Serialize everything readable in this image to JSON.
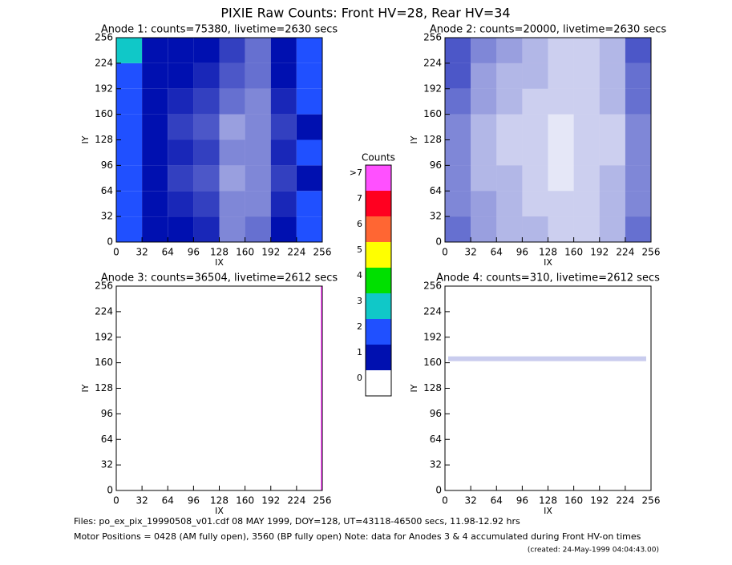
{
  "title": "PIXIE Raw Counts:  Front HV=28, Rear HV=34",
  "footer": [
    "Files: po_ex_pix_19990508_v01.cdf    08 MAY 1999, DOY=128, UT=43118-46500 secs, 11.98-12.92 hrs",
    "Motor Positions = 0428 (AM fully open), 3560 (BP fully open)    Note: data for Anodes 3 & 4 accumulated during Front HV-on times",
    "(created: 24-May-1999 04:04:43.00)"
  ],
  "colorbar": {
    "title": "Counts",
    "ticks": [
      0,
      1,
      2,
      3,
      4,
      5,
      6,
      7,
      {
        "value": 8,
        "label": ">7"
      }
    ],
    "colors": [
      "#ffffff",
      "#0010b0",
      "#2050ff",
      "#10c8c8",
      "#00e000",
      "#ffff00",
      "#ff6633",
      "#ff0020",
      "#ff50ff"
    ]
  },
  "chart_data": [
    {
      "type": "heatmap",
      "title": "Anode 1: counts=75380, livetime=2630 secs",
      "xlabel": "IX",
      "ylabel": "IY",
      "xlim": [
        0,
        256
      ],
      "ylim": [
        0,
        256
      ],
      "xticks": [
        0,
        32,
        64,
        96,
        128,
        160,
        192,
        224,
        256
      ],
      "yticks": [
        0,
        32,
        64,
        96,
        128,
        160,
        192,
        224,
        256
      ],
      "x_edges": [
        0,
        32,
        64,
        96,
        128,
        160,
        192,
        224,
        256
      ],
      "y_edges": [
        0,
        32,
        64,
        96,
        128,
        160,
        192,
        224,
        256
      ],
      "z": [
        [
          2.7,
          1.3,
          1.0,
          0.9,
          0.5,
          0.6,
          1.0,
          2.2
        ],
        [
          2.5,
          1.2,
          0.9,
          0.8,
          0.5,
          0.5,
          0.9,
          2.0
        ],
        [
          2.3,
          1.1,
          0.8,
          0.7,
          0.4,
          0.5,
          0.8,
          1.8
        ],
        [
          2.5,
          1.2,
          0.9,
          0.8,
          0.5,
          0.5,
          0.9,
          2.0
        ],
        [
          2.3,
          1.1,
          0.8,
          0.7,
          0.4,
          0.5,
          0.8,
          1.8
        ],
        [
          2.5,
          1.2,
          0.9,
          0.8,
          0.6,
          0.5,
          0.9,
          2.0
        ],
        [
          2.7,
          1.3,
          1.0,
          0.9,
          0.7,
          0.6,
          1.0,
          2.2
        ],
        [
          3.0,
          1.4,
          1.1,
          1.0,
          0.8,
          0.6,
          1.1,
          2.4
        ]
      ]
    },
    {
      "type": "heatmap",
      "title": "Anode 2: counts=20000, livetime=2630 secs",
      "xlabel": "IX",
      "ylabel": "IY",
      "xlim": [
        0,
        256
      ],
      "ylim": [
        0,
        256
      ],
      "xticks": [
        0,
        32,
        64,
        96,
        128,
        160,
        192,
        224,
        256
      ],
      "yticks": [
        0,
        32,
        64,
        96,
        128,
        160,
        192,
        224,
        256
      ],
      "x_edges": [
        0,
        32,
        64,
        96,
        128,
        160,
        192,
        224,
        256
      ],
      "y_edges": [
        0,
        32,
        64,
        96,
        128,
        160,
        192,
        224,
        256
      ],
      "z": [
        [
          0.6,
          0.4,
          0.3,
          0.3,
          0.2,
          0.2,
          0.3,
          0.6
        ],
        [
          0.5,
          0.4,
          0.3,
          0.2,
          0.2,
          0.2,
          0.3,
          0.5
        ],
        [
          0.5,
          0.3,
          0.3,
          0.2,
          0.1,
          0.2,
          0.3,
          0.5
        ],
        [
          0.5,
          0.3,
          0.2,
          0.2,
          0.1,
          0.2,
          0.2,
          0.5
        ],
        [
          0.5,
          0.3,
          0.2,
          0.2,
          0.1,
          0.2,
          0.2,
          0.5
        ],
        [
          0.6,
          0.4,
          0.3,
          0.2,
          0.2,
          0.2,
          0.3,
          0.6
        ],
        [
          0.7,
          0.4,
          0.3,
          0.3,
          0.2,
          0.2,
          0.3,
          0.6
        ],
        [
          0.7,
          0.5,
          0.4,
          0.3,
          0.2,
          0.2,
          0.3,
          0.7
        ]
      ]
    },
    {
      "type": "heatmap",
      "title": "Anode 3: counts=36504, livetime=2612 secs",
      "xlabel": "IX",
      "ylabel": "IY",
      "xlim": [
        0,
        256
      ],
      "ylim": [
        0,
        256
      ],
      "xticks": [
        0,
        32,
        64,
        96,
        128,
        160,
        192,
        224,
        256
      ],
      "yticks": [
        0,
        32,
        64,
        96,
        128,
        160,
        192,
        224,
        256
      ],
      "x_edges": [
        0,
        254,
        256
      ],
      "y_edges": [
        0,
        256
      ],
      "z": [
        [
          0,
          71
        ]
      ]
    },
    {
      "type": "heatmap",
      "title": "Anode 4: counts=310, livetime=2612 secs",
      "xlabel": "IX",
      "ylabel": "IY",
      "xlim": [
        0,
        256
      ],
      "ylim": [
        0,
        256
      ],
      "xticks": [
        0,
        32,
        64,
        96,
        128,
        160,
        192,
        224,
        256
      ],
      "yticks": [
        0,
        32,
        64,
        96,
        128,
        160,
        192,
        224,
        256
      ],
      "x_edges": [
        0,
        4,
        250,
        256
      ],
      "y_edges": [
        0,
        162,
        168,
        256
      ],
      "z": [
        [
          0,
          0,
          0
        ],
        [
          0,
          0.21,
          0
        ],
        [
          0,
          0,
          0
        ]
      ]
    }
  ]
}
